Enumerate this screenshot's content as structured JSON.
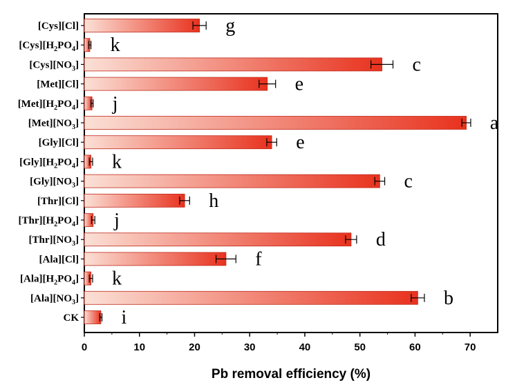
{
  "chart_data": {
    "type": "bar",
    "orientation": "horizontal",
    "title": "",
    "xlabel": "Pb removal efficiency (%)",
    "ylabel": "",
    "xlim": [
      0,
      75
    ],
    "xticks": [
      0,
      10,
      20,
      30,
      40,
      50,
      60,
      70
    ],
    "grid": false,
    "legend": "none",
    "categories": [
      {
        "id": "cys-cl",
        "parts": [
          {
            "t": "[Cys][Cl]"
          }
        ]
      },
      {
        "id": "cys-h2po4",
        "parts": [
          {
            "t": "[Cys][H"
          },
          {
            "t": "2",
            "sub": true
          },
          {
            "t": "PO"
          },
          {
            "t": "4",
            "sub": true
          },
          {
            "t": "]"
          }
        ]
      },
      {
        "id": "cys-no3",
        "parts": [
          {
            "t": "[Cys][NO"
          },
          {
            "t": "3",
            "sub": true
          },
          {
            "t": "]"
          }
        ]
      },
      {
        "id": "met-cl",
        "parts": [
          {
            "t": "[Met][Cl]"
          }
        ]
      },
      {
        "id": "met-h2po4",
        "parts": [
          {
            "t": "[Met][H"
          },
          {
            "t": "2",
            "sub": true
          },
          {
            "t": "PO"
          },
          {
            "t": "4",
            "sub": true
          },
          {
            "t": "]"
          }
        ]
      },
      {
        "id": "met-no3",
        "parts": [
          {
            "t": "[Met][NO"
          },
          {
            "t": "3",
            "sub": true
          },
          {
            "t": "]"
          }
        ]
      },
      {
        "id": "gly-cl",
        "parts": [
          {
            "t": "[Gly][Cl]"
          }
        ]
      },
      {
        "id": "gly-h2po4",
        "parts": [
          {
            "t": "[Gly][H"
          },
          {
            "t": "2",
            "sub": true
          },
          {
            "t": "PO"
          },
          {
            "t": "4",
            "sub": true
          },
          {
            "t": "]"
          }
        ]
      },
      {
        "id": "gly-no3",
        "parts": [
          {
            "t": "[Gly][NO"
          },
          {
            "t": "3",
            "sub": true
          },
          {
            "t": "]"
          }
        ]
      },
      {
        "id": "thr-cl",
        "parts": [
          {
            "t": "[Thr][Cl]"
          }
        ]
      },
      {
        "id": "thr-h2po4",
        "parts": [
          {
            "t": "[Thr][H"
          },
          {
            "t": "2",
            "sub": true
          },
          {
            "t": "PO"
          },
          {
            "t": "4",
            "sub": true
          },
          {
            "t": "]"
          }
        ]
      },
      {
        "id": "thr-no3",
        "parts": [
          {
            "t": "[Thr][NO"
          },
          {
            "t": "3",
            "sub": true
          },
          {
            "t": "]"
          }
        ]
      },
      {
        "id": "ala-cl",
        "parts": [
          {
            "t": "[Ala][Cl]"
          }
        ]
      },
      {
        "id": "ala-h2po4",
        "parts": [
          {
            "t": "[Ala][H"
          },
          {
            "t": "2",
            "sub": true
          },
          {
            "t": "PO"
          },
          {
            "t": "4",
            "sub": true
          },
          {
            "t": "]"
          }
        ]
      },
      {
        "id": "ala-no3",
        "parts": [
          {
            "t": "[Ala][NO"
          },
          {
            "t": "3",
            "sub": true
          },
          {
            "t": "]"
          }
        ]
      },
      {
        "id": "ck",
        "parts": [
          {
            "t": "CK"
          }
        ]
      }
    ],
    "values": [
      20.9,
      1.0,
      54.0,
      33.2,
      1.4,
      69.3,
      34.0,
      1.2,
      53.6,
      18.2,
      1.6,
      48.4,
      25.7,
      1.2,
      60.5,
      3.0
    ],
    "errors": [
      1.2,
      0.2,
      2.0,
      1.5,
      0.2,
      0.8,
      0.9,
      0.3,
      0.9,
      0.9,
      0.3,
      1.0,
      1.8,
      0.3,
      1.2,
      0.2
    ],
    "significance": [
      "g",
      "k",
      "c",
      "e",
      "j",
      "a",
      "e",
      "k",
      "c",
      "h",
      "j",
      "d",
      "f",
      "k",
      "b",
      "i"
    ],
    "colors": {
      "bar_left": "#fbe0d6",
      "bar_right": "#e8321e",
      "bar_stroke": "#c0281a",
      "axis": "#000000"
    }
  }
}
